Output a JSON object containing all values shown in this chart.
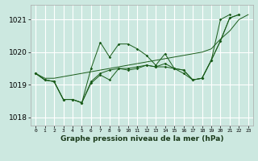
{
  "title": "Graphe pression niveau de la mer (hPa)",
  "bg_color": "#cce8e0",
  "grid_color": "#ffffff",
  "line_color": "#1a5c1a",
  "xlim": [
    -0.5,
    23.5
  ],
  "ylim": [
    1017.75,
    1021.45
  ],
  "xticks": [
    0,
    1,
    2,
    3,
    4,
    5,
    6,
    7,
    8,
    9,
    10,
    11,
    12,
    13,
    14,
    15,
    16,
    17,
    18,
    19,
    20,
    21,
    22,
    23
  ],
  "yticks": [
    1018,
    1019,
    1020,
    1021
  ],
  "s1_x": [
    0,
    1,
    2,
    3,
    4,
    5,
    6,
    7,
    8,
    9,
    10,
    11,
    12,
    13,
    14,
    15,
    16,
    17,
    18,
    19,
    20,
    21,
    22,
    23
  ],
  "s1_y": [
    1019.35,
    1019.15,
    1019.1,
    1018.55,
    1018.55,
    1018.45,
    1019.05,
    1019.3,
    1019.15,
    1019.5,
    1019.45,
    1019.5,
    1019.6,
    1019.55,
    1019.65,
    1019.5,
    1019.45,
    1019.15,
    1019.2,
    1019.75,
    1021.0,
    1021.15,
    null,
    null
  ],
  "s2_x": [
    0,
    1,
    2,
    3,
    4,
    5,
    6,
    7,
    8,
    9,
    10,
    11,
    12,
    13,
    14,
    15,
    16,
    17,
    18,
    19,
    20,
    21,
    22,
    23
  ],
  "s2_y": [
    1019.35,
    1019.15,
    1019.1,
    1018.55,
    1018.55,
    1018.45,
    1019.5,
    1020.3,
    1019.85,
    1020.25,
    1020.25,
    1020.1,
    1019.9,
    1019.6,
    1019.95,
    1019.5,
    1019.45,
    1019.15,
    1019.2,
    1019.75,
    1020.35,
    1021.05,
    1021.15,
    null
  ],
  "s3_x": [
    0,
    1,
    2,
    3,
    4,
    5,
    6,
    7,
    8,
    9,
    10,
    11,
    12,
    13,
    14,
    15,
    16,
    17,
    18,
    19,
    20,
    21,
    22,
    23
  ],
  "s3_y": [
    1019.35,
    1019.15,
    1019.1,
    1018.55,
    1018.55,
    1018.45,
    1019.1,
    1019.35,
    1019.45,
    1019.5,
    1019.5,
    1019.55,
    1019.6,
    1019.55,
    1019.55,
    1019.5,
    1019.35,
    1019.15,
    1019.2,
    1019.75,
    1020.35,
    1021.05,
    1021.15,
    null
  ],
  "s4_x": [
    0,
    1,
    2,
    3,
    4,
    5,
    6,
    7,
    8,
    9,
    10,
    11,
    12,
    13,
    14,
    15,
    16,
    17,
    18,
    19,
    20,
    21,
    22,
    23
  ],
  "s4_y": [
    1019.35,
    1019.2,
    1019.2,
    1019.25,
    1019.3,
    1019.35,
    1019.4,
    1019.45,
    1019.5,
    1019.55,
    1019.6,
    1019.65,
    1019.7,
    1019.75,
    1019.8,
    1019.85,
    1019.9,
    1019.95,
    1020.0,
    1020.1,
    1020.4,
    1020.65,
    1021.0,
    1021.15
  ],
  "figsize": [
    3.2,
    2.0
  ],
  "dpi": 100
}
